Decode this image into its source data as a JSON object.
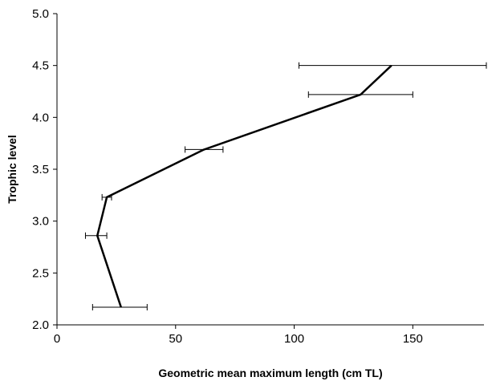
{
  "chart_data": {
    "type": "line",
    "title": "",
    "xlabel": "Geometric mean maximum length (cm TL)",
    "ylabel": "Trophic level",
    "xlim": [
      0,
      180
    ],
    "ylim": [
      2.0,
      5.0
    ],
    "x_ticks": [
      "0",
      "50",
      "100",
      "150"
    ],
    "x_tick_values": [
      0,
      50,
      100,
      150
    ],
    "y_ticks": [
      "2.0",
      "2.5",
      "3.0",
      "3.5",
      "4.0",
      "4.5",
      "5.0"
    ],
    "y_tick_values": [
      2.0,
      2.5,
      3.0,
      3.5,
      4.0,
      4.5,
      5.0
    ],
    "grid": false,
    "legend": "none",
    "series": [
      {
        "points": [
          {
            "x": 27,
            "y": 2.17,
            "xerr_low": 15,
            "xerr_high": 38
          },
          {
            "x": 17,
            "y": 2.86,
            "xerr_low": 12,
            "xerr_high": 21
          },
          {
            "x": 21,
            "y": 3.23,
            "xerr_low": 19,
            "xerr_high": 23
          },
          {
            "x": 62,
            "y": 3.69,
            "xerr_low": 54,
            "xerr_high": 70
          },
          {
            "x": 128,
            "y": 4.22,
            "xerr_low": 106,
            "xerr_high": 150
          },
          {
            "x": 141,
            "y": 4.5,
            "xerr_low": 102,
            "xerr_high": 181
          }
        ],
        "color": "#000000"
      }
    ]
  }
}
